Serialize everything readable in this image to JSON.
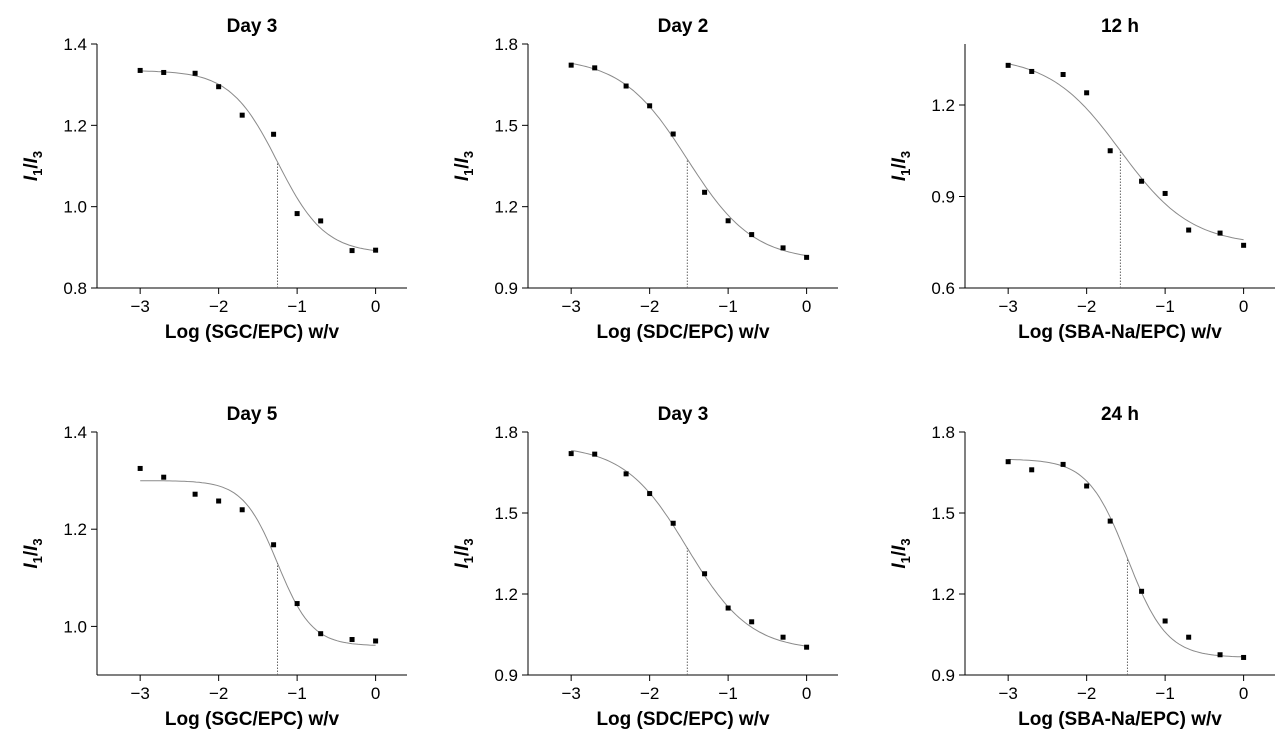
{
  "chart_data": [
    {
      "type": "scatter",
      "title": "Day 3",
      "xlabel": "Log (SGC/EPC) w/v",
      "ylabel": [
        "I",
        "1",
        "/",
        "I",
        "3"
      ],
      "color": "#000000",
      "x": [
        -3,
        -2.7,
        -2.3,
        -2,
        -1.7,
        -1.3,
        -1,
        -0.7,
        -0.3,
        0
      ],
      "values": [
        1.335,
        1.33,
        1.328,
        1.295,
        1.225,
        1.178,
        0.983,
        0.965,
        0.892,
        0.893
      ],
      "fit": {
        "top": 1.335,
        "bottom": 0.885,
        "x0": -1.25,
        "width": 0.3
      },
      "xlim": [
        -3.55,
        0.4
      ],
      "ylim": [
        0.8,
        1.4
      ],
      "xticks": [
        {
          "value": -3,
          "label": "−3"
        },
        {
          "value": -2,
          "label": "−2"
        },
        {
          "value": -1,
          "label": "−1"
        },
        0
      ],
      "yticks": [
        0.8,
        {
          "value": 1,
          "label": "1.0"
        },
        1.2,
        1.4
      ]
    },
    {
      "type": "scatter",
      "title": "Day 2",
      "xlabel": "Log (SDC/EPC) w/v",
      "ylabel": [
        "I",
        "1",
        "/",
        "I",
        "3"
      ],
      "color": "#000000",
      "x": [
        -3,
        -2.7,
        -2.3,
        -2,
        -1.7,
        -1.3,
        -1,
        -0.7,
        -0.3,
        0
      ],
      "values": [
        1.722,
        1.712,
        1.645,
        1.572,
        1.468,
        1.253,
        1.148,
        1.097,
        1.048,
        1.013
      ],
      "fit": {
        "top": 1.75,
        "bottom": 1.0,
        "x0": -1.52,
        "width": 0.42
      },
      "xlim": [
        -3.55,
        0.4
      ],
      "ylim": [
        0.9,
        1.8
      ],
      "xticks": [
        {
          "value": -3,
          "label": "−3"
        },
        {
          "value": -2,
          "label": "−2"
        },
        {
          "value": -1,
          "label": "−1"
        },
        0
      ],
      "yticks": [
        0.9,
        1.2,
        1.5,
        1.8
      ]
    },
    {
      "type": "scatter",
      "title": "12 h",
      "xlabel": "Log (SBA-Na/EPC) w/v",
      "ylabel": [
        "I",
        "1",
        "/",
        "I",
        "3"
      ],
      "color": "#000000",
      "x": [
        -3,
        -2.7,
        -2.3,
        -2,
        -1.7,
        -1.3,
        -1,
        -0.7,
        -0.3,
        0
      ],
      "values": [
        1.33,
        1.31,
        1.3,
        1.24,
        1.05,
        0.95,
        0.91,
        0.79,
        0.78,
        0.74
      ],
      "fit": {
        "top": 1.36,
        "bottom": 0.74,
        "x0": -1.57,
        "width": 0.45
      },
      "xlim": [
        -3.55,
        0.4
      ],
      "ylim": [
        0.6,
        1.4
      ],
      "xticks": [
        {
          "value": -3,
          "label": "−3"
        },
        {
          "value": -2,
          "label": "−2"
        },
        {
          "value": -1,
          "label": "−1"
        },
        0
      ],
      "yticks": [
        0.6,
        0.9,
        1.2
      ]
    },
    {
      "type": "scatter",
      "title": "Day 5",
      "xlabel": "Log (SGC/EPC) w/v",
      "ylabel": [
        "I",
        "1",
        "/",
        "I",
        "3"
      ],
      "color": "#000000",
      "x": [
        -3,
        -2.7,
        -2.3,
        -2,
        -1.7,
        -1.3,
        -1,
        -0.7,
        -0.3,
        0
      ],
      "values": [
        1.325,
        1.307,
        1.272,
        1.258,
        1.24,
        1.168,
        1.047,
        0.985,
        0.973,
        0.97
      ],
      "fit": {
        "top": 1.3,
        "bottom": 0.96,
        "x0": -1.25,
        "width": 0.22
      },
      "xlim": [
        -3.55,
        0.4
      ],
      "ylim": [
        0.9,
        1.4
      ],
      "xticks": [
        {
          "value": -3,
          "label": "−3"
        },
        {
          "value": -2,
          "label": "−2"
        },
        {
          "value": -1,
          "label": "−1"
        },
        0
      ],
      "yticks": [
        {
          "value": 1,
          "label": "1.0"
        },
        1.2,
        1.4
      ]
    },
    {
      "type": "scatter",
      "title": "Day 3",
      "xlabel": "Log (SDC/EPC) w/v",
      "ylabel": [
        "I",
        "1",
        "/",
        "I",
        "3"
      ],
      "color": "#000000",
      "x": [
        -3,
        -2.7,
        -2.3,
        -2,
        -1.7,
        -1.3,
        -1,
        -0.7,
        -0.3,
        0
      ],
      "values": [
        1.72,
        1.718,
        1.645,
        1.572,
        1.462,
        1.275,
        1.148,
        1.097,
        1.04,
        1.003
      ],
      "fit": {
        "top": 1.75,
        "bottom": 0.99,
        "x0": -1.52,
        "width": 0.4
      },
      "xlim": [
        -3.55,
        0.4
      ],
      "ylim": [
        0.9,
        1.8
      ],
      "xticks": [
        {
          "value": -3,
          "label": "−3"
        },
        {
          "value": -2,
          "label": "−2"
        },
        {
          "value": -1,
          "label": "−1"
        },
        0
      ],
      "yticks": [
        0.9,
        1.2,
        1.5,
        1.8
      ]
    },
    {
      "type": "scatter",
      "title": "24 h",
      "xlabel": "Log (SBA-Na/EPC) w/v",
      "ylabel": [
        "I",
        "1",
        "/",
        "I",
        "3"
      ],
      "color": "#000000",
      "x": [
        -3,
        -2.7,
        -2.3,
        -2,
        -1.7,
        -1.3,
        -1,
        -0.7,
        -0.3,
        0
      ],
      "values": [
        1.69,
        1.66,
        1.68,
        1.6,
        1.47,
        1.21,
        1.1,
        1.04,
        0.975,
        0.965
      ],
      "fit": {
        "top": 1.7,
        "bottom": 0.965,
        "x0": -1.48,
        "width": 0.25
      },
      "xlim": [
        -3.55,
        0.4
      ],
      "ylim": [
        0.9,
        1.8
      ],
      "xticks": [
        {
          "value": -3,
          "label": "−3"
        },
        {
          "value": -2,
          "label": "−2"
        },
        {
          "value": -1,
          "label": "−1"
        },
        0
      ],
      "yticks": [
        0.9,
        1.2,
        1.5,
        1.8
      ]
    }
  ]
}
